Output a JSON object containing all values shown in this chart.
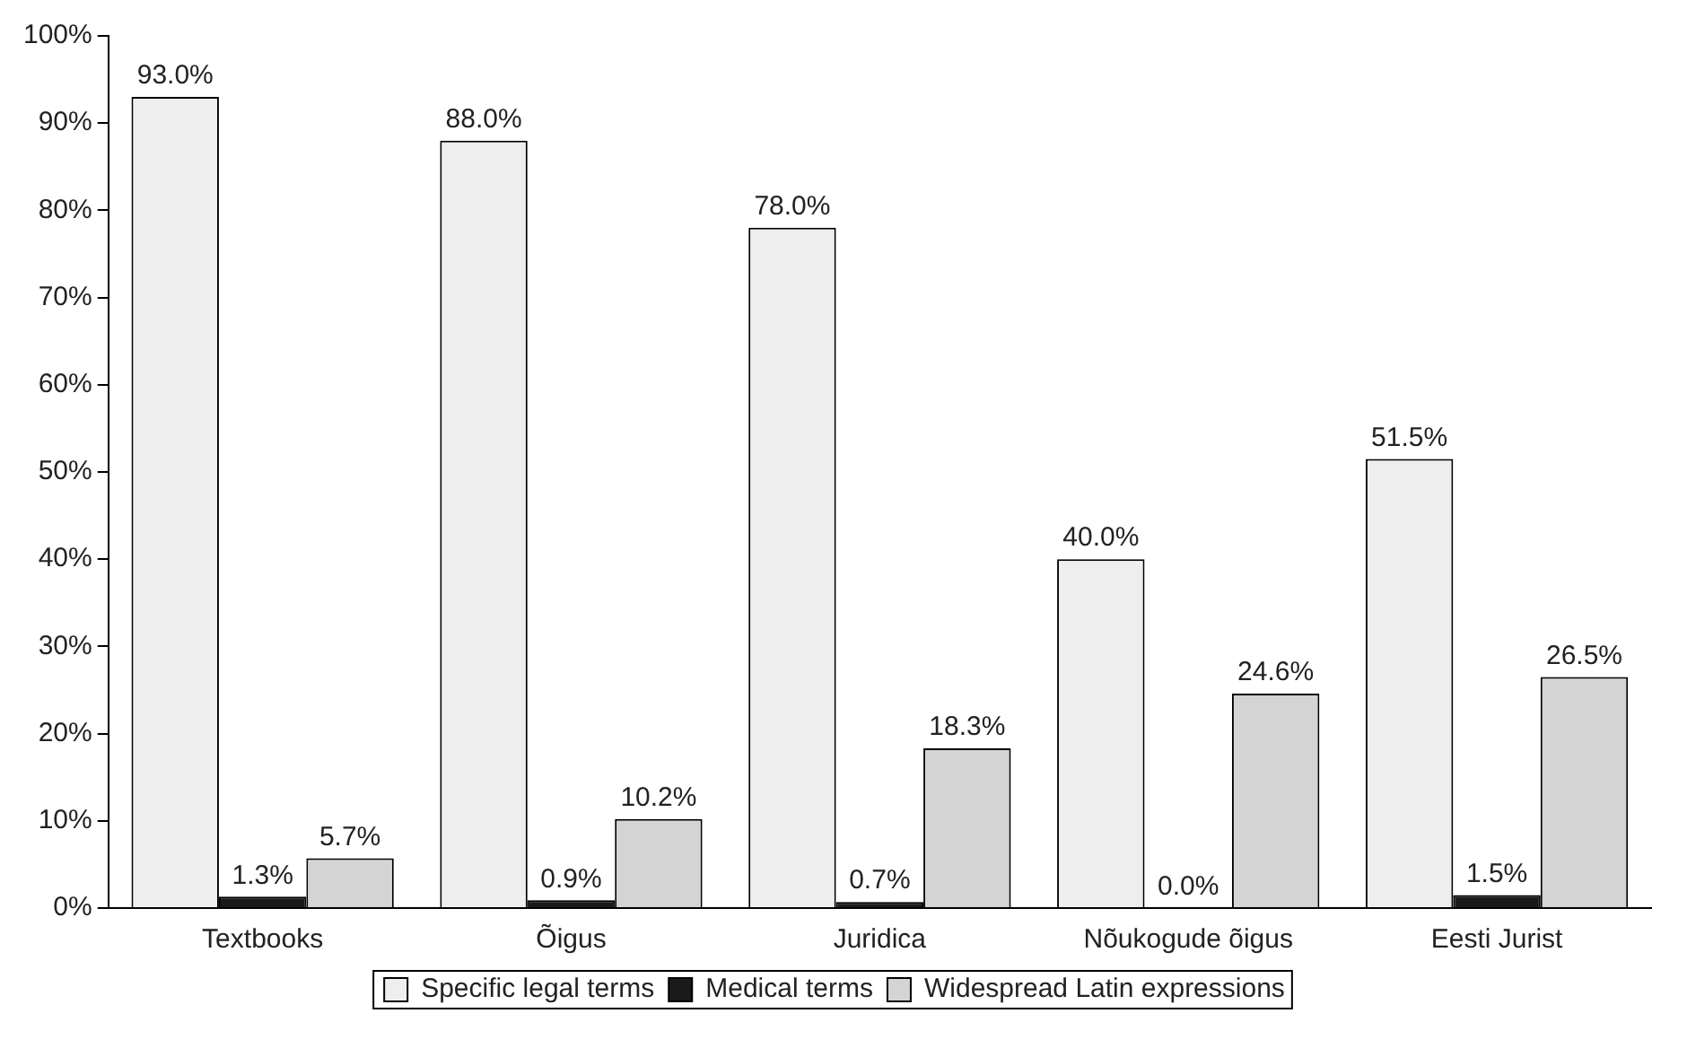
{
  "chart_data": {
    "type": "bar",
    "categories": [
      "Textbooks",
      "Õigus",
      "Juridica",
      "Nõukogude õigus",
      "Eesti Jurist"
    ],
    "series": [
      {
        "name": "Specific legal terms",
        "color": "#eeeeee",
        "values": [
          93.0,
          88.0,
          78.0,
          40.0,
          51.5
        ],
        "value_labels": [
          "93.0%",
          "88.0%",
          "78.0%",
          "40.0%",
          "51.5%"
        ]
      },
      {
        "name": "Medical terms",
        "color": "#1a1a1a",
        "values": [
          1.3,
          0.9,
          0.7,
          0.0,
          1.5
        ],
        "value_labels": [
          "1.3%",
          "0.9%",
          "0.7%",
          "0.0%",
          "1.5%"
        ]
      },
      {
        "name": "Widespread Latin expressions",
        "color": "#d4d4d4",
        "values": [
          5.7,
          10.2,
          18.3,
          24.6,
          26.5
        ],
        "value_labels": [
          "5.7%",
          "10.2%",
          "18.3%",
          "24.6%",
          "26.5%"
        ]
      }
    ],
    "ylim": [
      0,
      100
    ],
    "yticks": [
      {
        "value": 0,
        "label": "0%"
      },
      {
        "value": 10,
        "label": "10%"
      },
      {
        "value": 20,
        "label": "20%"
      },
      {
        "value": 30,
        "label": "30%"
      },
      {
        "value": 40,
        "label": "40%"
      },
      {
        "value": 50,
        "label": "50%"
      },
      {
        "value": 60,
        "label": "60%"
      },
      {
        "value": 70,
        "label": "70%"
      },
      {
        "value": 80,
        "label": "80%"
      },
      {
        "value": 90,
        "label": "90%"
      },
      {
        "value": 100,
        "label": "100%"
      }
    ],
    "grid": false,
    "legend": "bottom"
  }
}
